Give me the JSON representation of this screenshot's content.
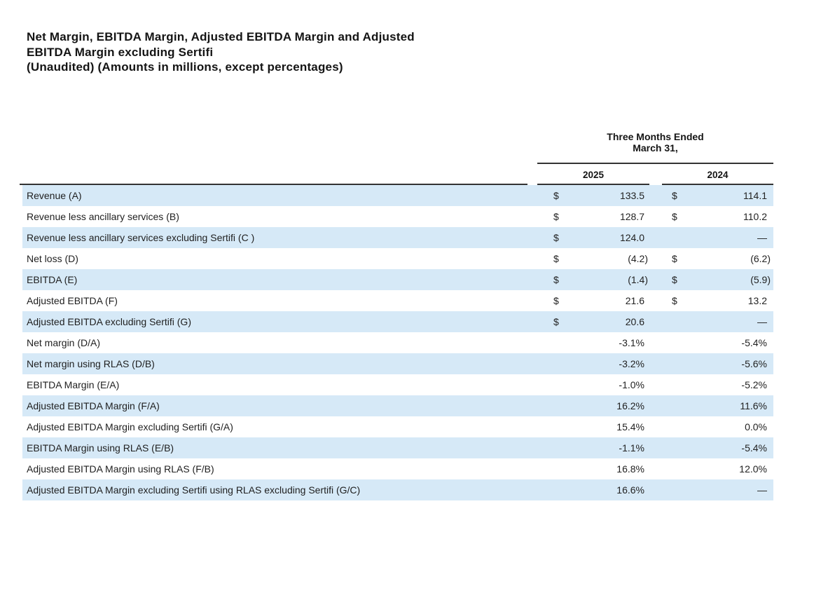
{
  "title": {
    "lines": [
      "Net Margin, EBITDA Margin, Adjusted EBITDA Margin and Adjusted",
      "EBITDA Margin excluding Sertifi",
      "(Unaudited) (Amounts in millions, except percentages)"
    ]
  },
  "table": {
    "period_header": {
      "line1": "Three Months Ended",
      "line2": "March 31,"
    },
    "columns": [
      "2025",
      "2024"
    ],
    "colors": {
      "band": "#d6e9f7",
      "rule": "#333333",
      "text": "#1f1f1f"
    },
    "rows": [
      {
        "label": "Revenue (A)",
        "c2025": {
          "currency": "$",
          "value": "133.5"
        },
        "c2024": {
          "currency": "$",
          "value": "114.1"
        },
        "shaded": true
      },
      {
        "label": "Revenue less ancillary services (B)",
        "c2025": {
          "currency": "$",
          "value": "128.7"
        },
        "c2024": {
          "currency": "$",
          "value": "110.2"
        },
        "shaded": false
      },
      {
        "label": "Revenue less ancillary services excluding Sertifi (C )",
        "c2025": {
          "currency": "$",
          "value": "124.0"
        },
        "c2024": {
          "currency": "",
          "value": "—"
        },
        "shaded": true
      },
      {
        "label": "Net loss (D)",
        "c2025": {
          "currency": "$",
          "value": "(4.2)"
        },
        "c2024": {
          "currency": "$",
          "value": "(6.2)"
        },
        "shaded": false
      },
      {
        "label": "EBITDA (E)",
        "c2025": {
          "currency": "$",
          "value": "(1.4)"
        },
        "c2024": {
          "currency": "$",
          "value": "(5.9)"
        },
        "shaded": true
      },
      {
        "label": "Adjusted EBITDA (F)",
        "c2025": {
          "currency": "$",
          "value": "21.6"
        },
        "c2024": {
          "currency": "$",
          "value": "13.2"
        },
        "shaded": false
      },
      {
        "label": "Adjusted EBITDA excluding Sertifi (G)",
        "c2025": {
          "currency": "$",
          "value": "20.6"
        },
        "c2024": {
          "currency": "",
          "value": "—"
        },
        "shaded": true
      },
      {
        "label": "Net margin (D/A)",
        "c2025": {
          "currency": "",
          "value": "-3.1%"
        },
        "c2024": {
          "currency": "",
          "value": "-5.4%"
        },
        "shaded": false
      },
      {
        "label": "Net margin using RLAS (D/B)",
        "c2025": {
          "currency": "",
          "value": "-3.2%"
        },
        "c2024": {
          "currency": "",
          "value": "-5.6%"
        },
        "shaded": true
      },
      {
        "label": "EBITDA Margin (E/A)",
        "c2025": {
          "currency": "",
          "value": "-1.0%"
        },
        "c2024": {
          "currency": "",
          "value": "-5.2%"
        },
        "shaded": false
      },
      {
        "label": "Adjusted EBITDA Margin (F/A)",
        "c2025": {
          "currency": "",
          "value": "16.2%"
        },
        "c2024": {
          "currency": "",
          "value": "11.6%"
        },
        "shaded": true
      },
      {
        "label": "Adjusted EBITDA Margin excluding Sertifi (G/A)",
        "c2025": {
          "currency": "",
          "value": "15.4%"
        },
        "c2024": {
          "currency": "",
          "value": "0.0%"
        },
        "shaded": false
      },
      {
        "label": "EBITDA Margin using RLAS (E/B)",
        "c2025": {
          "currency": "",
          "value": "-1.1%"
        },
        "c2024": {
          "currency": "",
          "value": "-5.4%"
        },
        "shaded": true
      },
      {
        "label": "Adjusted EBITDA Margin using RLAS (F/B)",
        "c2025": {
          "currency": "",
          "value": "16.8%"
        },
        "c2024": {
          "currency": "",
          "value": "12.0%"
        },
        "shaded": false
      },
      {
        "label": "Adjusted EBITDA Margin excluding Sertifi using RLAS excluding Sertifi (G/C)",
        "c2025": {
          "currency": "",
          "value": "16.6%"
        },
        "c2024": {
          "currency": "",
          "value": "—"
        },
        "shaded": true
      }
    ]
  }
}
